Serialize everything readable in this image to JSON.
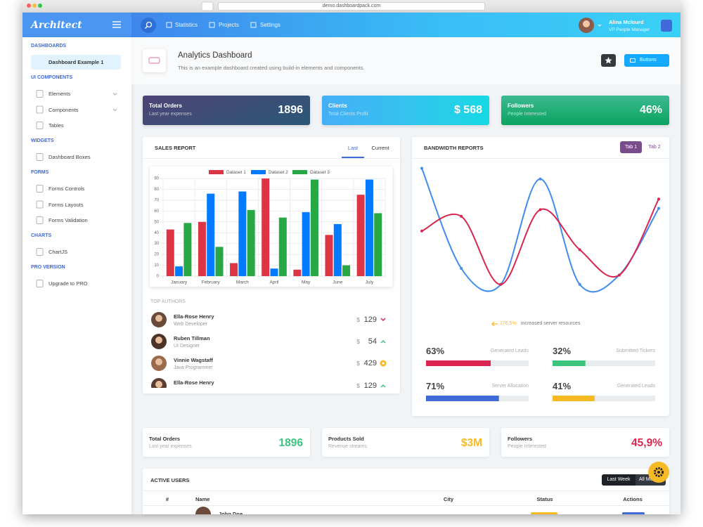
{
  "browser": {
    "url": "demo.dashboardpack.com"
  },
  "header": {
    "logo": "Architect",
    "nav": [
      "Statistics",
      "Projects",
      "Settings"
    ],
    "user": {
      "name": "Alina Mclourd",
      "role": "VP People Manager"
    }
  },
  "sidebar": [
    {
      "heading": "DASHBOARDS",
      "items": [
        {
          "label": "Dashboard Example 1",
          "active": true
        }
      ]
    },
    {
      "heading": "UI COMPONENTS",
      "items": [
        {
          "label": "Elements",
          "submenu": true
        },
        {
          "label": "Components",
          "submenu": true
        },
        {
          "label": "Tables"
        }
      ]
    },
    {
      "heading": "WIDGETS",
      "items": [
        {
          "label": "Dashboard Boxes"
        }
      ]
    },
    {
      "heading": "FORMS",
      "items": [
        {
          "label": "Forms Controls"
        },
        {
          "label": "Forms Layouts"
        },
        {
          "label": "Forms Validation"
        }
      ]
    },
    {
      "heading": "CHARTS",
      "items": [
        {
          "label": "ChartJS"
        }
      ]
    },
    {
      "heading": "PRO VERSION",
      "items": [
        {
          "label": "Upgrade to PRO"
        }
      ]
    }
  ],
  "page_title": {
    "title": "Analytics Dashboard",
    "subtitle": "This is an example dashboard created using build-in elements and components.",
    "button": "Buttons"
  },
  "top_cards": [
    {
      "title": "Total Orders",
      "subtitle": "Last year expenses",
      "value": "1896"
    },
    {
      "title": "Clients",
      "subtitle": "Total Clients Profit",
      "value": "$ 568"
    },
    {
      "title": "Followers",
      "subtitle": "People Interested",
      "value": "46%"
    }
  ],
  "sales_report": {
    "title": "SALES REPORT",
    "tabs": [
      "Last",
      "Current"
    ],
    "chart_data": {
      "type": "bar",
      "categories": [
        "January",
        "February",
        "March",
        "April",
        "May",
        "June",
        "July"
      ],
      "series": [
        {
          "name": "Dataset 1",
          "color": "#dc3545",
          "values": [
            43,
            50,
            12,
            90,
            6,
            38,
            75
          ]
        },
        {
          "name": "Dataset 2",
          "color": "#007bff",
          "values": [
            9,
            76,
            78,
            7,
            59,
            48,
            89
          ]
        },
        {
          "name": "Dataset 3",
          "color": "#28a745",
          "values": [
            49,
            27,
            61,
            54,
            89,
            10,
            58
          ]
        }
      ],
      "ylim": [
        0,
        90
      ],
      "yticks": [
        0,
        10,
        20,
        30,
        40,
        50,
        60,
        70,
        80,
        90
      ],
      "grid": true,
      "legend": "top"
    },
    "authors_title": "TOP AUTHORS",
    "currency": "$",
    "authors": [
      {
        "name": "Ella-Rose Henry",
        "role": "Web Developer",
        "amount": "129",
        "icon": "down"
      },
      {
        "name": "Ruben Tillman",
        "role": "UI Designer",
        "amount": "54",
        "icon": "up"
      },
      {
        "name": "Vinnie Wagstaff",
        "role": "Java Programmer",
        "amount": "429",
        "icon": "dot"
      },
      {
        "name": "Ella-Rose Henry",
        "amount": "129",
        "icon": "up"
      }
    ]
  },
  "bandwidth": {
    "title": "BANDWIDTH REPORTS",
    "tabs": [
      "Tab 1",
      "Tab 2"
    ],
    "chart_data": {
      "type": "line",
      "series": [
        {
          "color": "#3f8cf0",
          "values": [
            95,
            20,
            8,
            87,
            8,
            15,
            65
          ]
        },
        {
          "color": "#d92550",
          "values": [
            48,
            59,
            8,
            64,
            34,
            15,
            72
          ]
        }
      ],
      "ylim": [
        0,
        100
      ]
    },
    "note_value": "176,5%",
    "note": "increased server resources",
    "metrics": [
      {
        "value": 63,
        "value_label": "63%",
        "label": "Generated Leads",
        "color": "#d92550"
      },
      {
        "value": 32,
        "value_label": "32%",
        "label": "Submitted Tickers",
        "color": "#3ac47d"
      },
      {
        "value": 71,
        "value_label": "71%",
        "label": "Server Allocation",
        "color": "#3f6ad8"
      },
      {
        "value": 41,
        "value_label": "41%",
        "label": "Generated Leads",
        "color": "#f7b924"
      }
    ]
  },
  "bottom_cards": [
    {
      "title": "Total Orders",
      "subtitle": "Last year expenses",
      "value": "1896"
    },
    {
      "title": "Products Sold",
      "subtitle": "Revenue streams",
      "value": "$3M"
    },
    {
      "title": "Followers",
      "subtitle": "People Interested",
      "value": "45,9%"
    }
  ],
  "active_users": {
    "title": "ACTIVE USERS",
    "buttons": [
      "Last Week",
      "All Month"
    ],
    "columns": [
      "#",
      "Name",
      "City",
      "Status",
      "Actions"
    ],
    "rows": [
      {
        "name": "John Doe"
      }
    ]
  }
}
